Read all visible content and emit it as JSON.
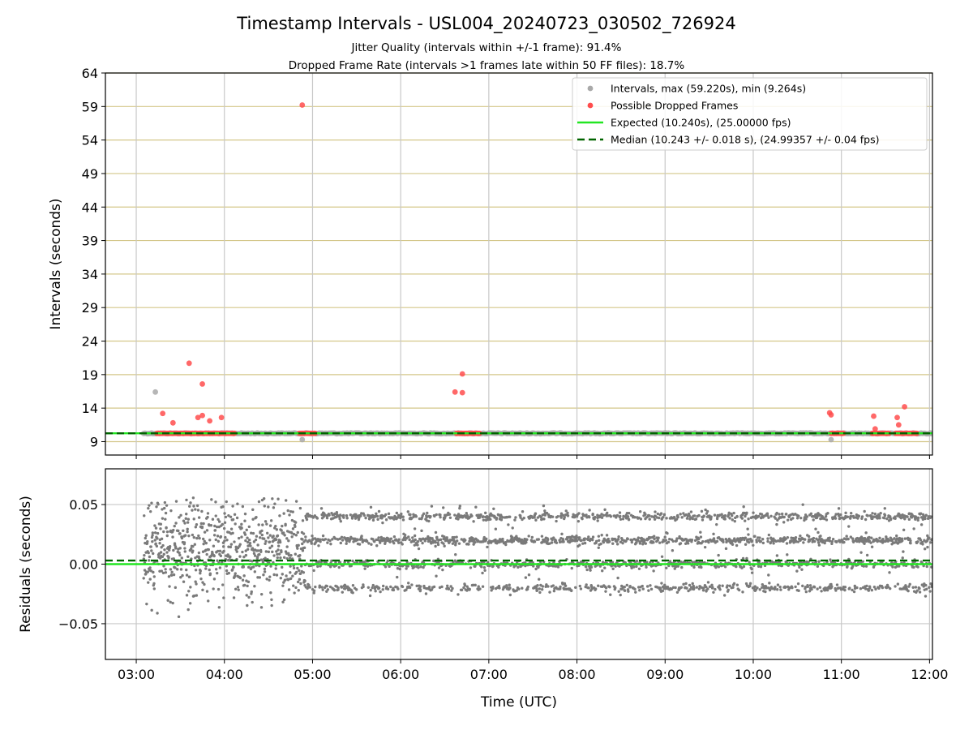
{
  "figure": {
    "title": "Timestamp Intervals - USL004_20240723_030502_726924",
    "subtitle_1": "Jitter Quality (intervals within +/-1 frame): 91.4%",
    "subtitle_2": "Dropped Frame Rate (intervals >1 frames late within 50 FF files): 18.7%"
  },
  "colors": {
    "intervals": "#a9a9a9",
    "dropped": "#ff4d4d",
    "expected": "#22e622",
    "median": "#006400",
    "residuals": "#7a7a7a",
    "hgrid_top": "#d4c78a",
    "grid": "#c8c8c8"
  },
  "chart_data": [
    {
      "type": "scatter",
      "xlabel": "",
      "ylabel": "Intervals (seconds)",
      "xlim": [
        "02:39",
        "12:02"
      ],
      "ylim": [
        7,
        64
      ],
      "x_ticks": [
        "03:00",
        "04:00",
        "05:00",
        "06:00",
        "07:00",
        "08:00",
        "09:00",
        "10:00",
        "11:00",
        "12:00"
      ],
      "y_ticks": [
        9,
        14,
        19,
        24,
        29,
        34,
        39,
        44,
        49,
        54,
        59,
        64
      ],
      "legend_position": "top-right",
      "legend": [
        "Intervals, max (59.220s), min (9.264s)",
        "Possible Dropped Frames",
        "Expected (10.240s), (25.00000 fps)",
        "Median (10.243 +/- 0.018 s), (24.99357 +/- 0.04 fps)"
      ],
      "expected_value": 10.24,
      "median_value": 10.243,
      "series": [
        {
          "name": "Intervals, max (59.220s), min (9.264s)",
          "baseline_x_range": [
            "03:05",
            "12:02"
          ],
          "baseline_y": 10.24,
          "points": [
            {
              "x": "03:13",
              "y": 16.4
            },
            {
              "x": "04:53",
              "y": 9.3
            },
            {
              "x": "10:53",
              "y": 9.3
            }
          ]
        },
        {
          "name": "Possible Dropped Frames",
          "clusters": [
            {
              "x_range": [
                "03:14",
                "04:07"
              ],
              "y": 10.24
            },
            {
              "x_range": [
                "04:51",
                "05:02"
              ],
              "y": 10.24
            },
            {
              "x_range": [
                "06:38",
                "06:54"
              ],
              "y": 10.24
            },
            {
              "x_range": [
                "10:53",
                "11:02"
              ],
              "y": 10.24
            },
            {
              "x_range": [
                "11:21",
                "11:33"
              ],
              "y": 10.24
            },
            {
              "x_range": [
                "11:37",
                "11:52"
              ],
              "y": 10.24
            }
          ],
          "points": [
            {
              "x": "03:18",
              "y": 13.2
            },
            {
              "x": "03:25",
              "y": 11.8
            },
            {
              "x": "03:36",
              "y": 20.7
            },
            {
              "x": "03:42",
              "y": 12.6
            },
            {
              "x": "03:45",
              "y": 12.9
            },
            {
              "x": "03:45",
              "y": 17.6
            },
            {
              "x": "03:50",
              "y": 12.1
            },
            {
              "x": "03:58",
              "y": 12.6
            },
            {
              "x": "04:53",
              "y": 59.22
            },
            {
              "x": "06:37",
              "y": 16.4
            },
            {
              "x": "06:42",
              "y": 16.3
            },
            {
              "x": "06:42",
              "y": 19.1
            },
            {
              "x": "10:52",
              "y": 13.3
            },
            {
              "x": "10:53",
              "y": 13.0
            },
            {
              "x": "11:22",
              "y": 12.8
            },
            {
              "x": "11:23",
              "y": 10.9
            },
            {
              "x": "11:38",
              "y": 12.6
            },
            {
              "x": "11:39",
              "y": 11.5
            },
            {
              "x": "11:43",
              "y": 14.2
            }
          ]
        }
      ]
    },
    {
      "type": "scatter",
      "xlabel": "Time (UTC)",
      "ylabel": "Residuals (seconds)",
      "xlim": [
        "02:39",
        "12:02"
      ],
      "ylim": [
        -0.08,
        0.08
      ],
      "x_ticks": [
        "03:00",
        "04:00",
        "05:00",
        "06:00",
        "07:00",
        "08:00",
        "09:00",
        "10:00",
        "11:00",
        "12:00"
      ],
      "y_ticks": [
        "0.05",
        "0.00",
        "−0.05"
      ],
      "expected_value": 0.0,
      "median_value": 0.003,
      "series": [
        {
          "name": "Residuals",
          "segments": [
            {
              "x_range": [
                "03:05",
                "04:55"
              ],
              "center": 0.01,
              "spread": 0.02,
              "min": -0.045,
              "max": 0.056
            },
            {
              "x_range": [
                "04:55",
                "12:02"
              ],
              "bands": [
                0.04,
                0.02,
                0.0,
                -0.02
              ]
            }
          ]
        }
      ]
    }
  ]
}
